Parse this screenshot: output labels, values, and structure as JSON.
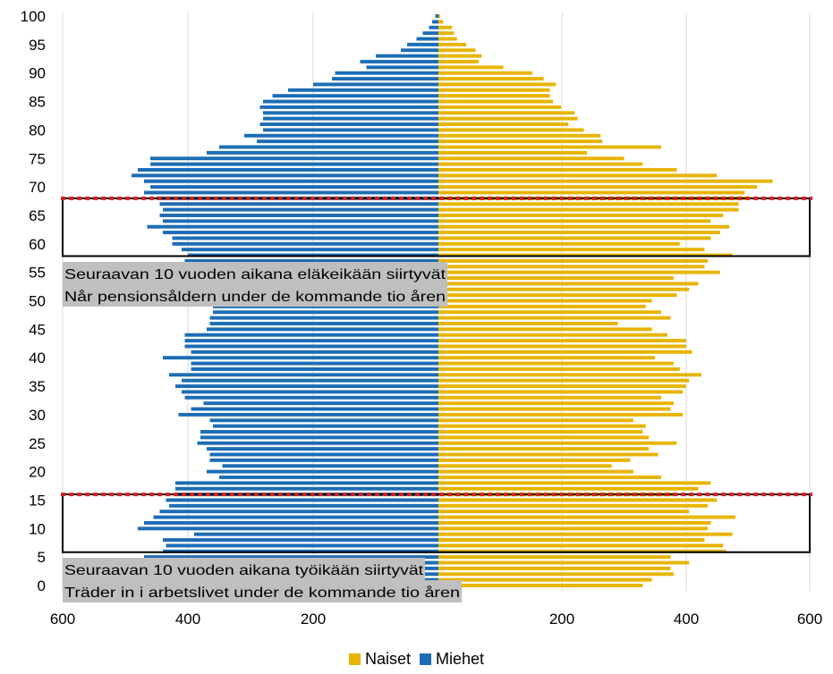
{
  "chart_data": {
    "type": "bar",
    "orientation": "horizontal-population-pyramid",
    "title": "",
    "xlabel": "",
    "ylabel": "",
    "xlim_left": [
      600,
      0
    ],
    "xlim_right": [
      0,
      600
    ],
    "x_tick_labels": [
      "600",
      "400",
      "200",
      "200",
      "400",
      "600"
    ],
    "y_tick_labels": [
      "0",
      "5",
      "10",
      "15",
      "20",
      "25",
      "30",
      "35",
      "40",
      "45",
      "50",
      "55",
      "60",
      "65",
      "70",
      "75",
      "80",
      "85",
      "90",
      "95",
      "100"
    ],
    "ages": [
      0,
      1,
      2,
      3,
      4,
      5,
      6,
      7,
      8,
      9,
      10,
      11,
      12,
      13,
      14,
      15,
      16,
      17,
      18,
      19,
      20,
      21,
      22,
      23,
      24,
      25,
      26,
      27,
      28,
      29,
      30,
      31,
      32,
      33,
      34,
      35,
      36,
      37,
      38,
      39,
      40,
      41,
      42,
      43,
      44,
      45,
      46,
      47,
      48,
      49,
      50,
      51,
      52,
      53,
      54,
      55,
      56,
      57,
      58,
      59,
      60,
      61,
      62,
      63,
      64,
      65,
      66,
      67,
      68,
      69,
      70,
      71,
      72,
      73,
      74,
      75,
      76,
      77,
      78,
      79,
      80,
      81,
      82,
      83,
      84,
      85,
      86,
      87,
      88,
      89,
      90,
      91,
      92,
      93,
      94,
      95,
      96,
      97,
      98,
      99,
      100
    ],
    "series": [
      {
        "name": "Naiset",
        "color": "#E8B400",
        "values": [
          330,
          345,
          380,
          375,
          405,
          375,
          465,
          460,
          430,
          475,
          435,
          440,
          480,
          405,
          435,
          450,
          380,
          420,
          440,
          360,
          315,
          280,
          310,
          355,
          340,
          385,
          340,
          330,
          335,
          315,
          395,
          375,
          380,
          360,
          395,
          400,
          405,
          425,
          390,
          380,
          350,
          410,
          400,
          400,
          370,
          345,
          290,
          375,
          360,
          335,
          345,
          385,
          405,
          420,
          380,
          455,
          430,
          435,
          475,
          430,
          390,
          440,
          455,
          470,
          440,
          460,
          485,
          485,
          500,
          495,
          515,
          540,
          450,
          385,
          330,
          300,
          240,
          360,
          265,
          262,
          235,
          210,
          225,
          220,
          198,
          185,
          180,
          180,
          190,
          170,
          152,
          105,
          65,
          70,
          60,
          45,
          30,
          25,
          22,
          8,
          3
        ]
      },
      {
        "name": "Miehet",
        "color": "#1C6DB5",
        "values": [
          0,
          25,
          25,
          25,
          25,
          470,
          440,
          435,
          440,
          390,
          480,
          470,
          455,
          445,
          430,
          435,
          420,
          420,
          420,
          350,
          370,
          345,
          365,
          365,
          370,
          385,
          380,
          380,
          360,
          365,
          415,
          395,
          375,
          405,
          410,
          420,
          410,
          430,
          395,
          395,
          440,
          395,
          405,
          405,
          405,
          370,
          365,
          365,
          360,
          360,
          340,
          350,
          370,
          330,
          360,
          390,
          380,
          405,
          400,
          410,
          425,
          425,
          440,
          465,
          440,
          445,
          440,
          445,
          450,
          470,
          460,
          470,
          490,
          480,
          460,
          460,
          370,
          350,
          290,
          310,
          280,
          285,
          280,
          280,
          285,
          280,
          265,
          240,
          200,
          170,
          165,
          115,
          125,
          100,
          60,
          50,
          35,
          25,
          15,
          10,
          5
        ]
      }
    ],
    "annotations": [
      {
        "text_fi": "Seuraavan 10 vuoden aikana eläkeikään siirtyvät",
        "text_sv": "Når pensionsåldern under de kommande tio åren",
        "age_range": [
          58,
          68
        ]
      },
      {
        "text_fi": "Seuraavan 10 vuoden aikana työikään siirtyvät",
        "text_sv": "Träder in i arbetslivet under de kommande tio åren",
        "age_range": [
          6,
          16
        ]
      }
    ],
    "legend": {
      "placement": "bottom-center",
      "entries": [
        "Naiset",
        "Miehet"
      ]
    },
    "grid": true
  }
}
